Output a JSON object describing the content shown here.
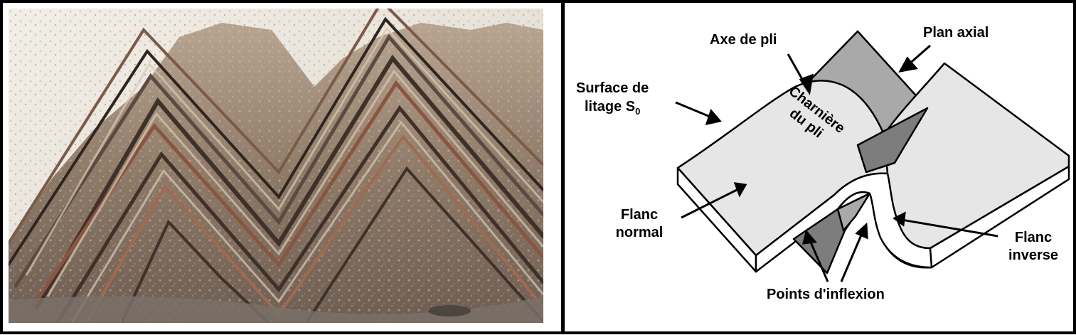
{
  "photo": {
    "colors": {
      "sky": "#e8e3d8",
      "rock_light": "#c4b09c",
      "rock_dark": "#4a3c33",
      "layer_rust": "#8a5540",
      "ground": "#7a7068"
    }
  },
  "diagram": {
    "labels": {
      "fold_axis": "Axe de pli",
      "axial_plane": "Plan axial",
      "bedding_surface_line1": "Surface de",
      "bedding_surface_line2": "litage S",
      "bedding_surface_subscript": "0",
      "hinge_line1": "Charnière",
      "hinge_line2": "du pli",
      "normal_limb_line1": "Flanc",
      "normal_limb_line2": "normal",
      "inverse_limb_line1": "Flanc",
      "inverse_limb_line2": "inverse",
      "inflection_points": "Points d'inflexion"
    },
    "colors": {
      "surface": "#e6e6e6",
      "side": "#ffffff",
      "plane": "#a9a9a9",
      "plane_dark": "#7d7d7d",
      "stroke": "#000000"
    }
  }
}
